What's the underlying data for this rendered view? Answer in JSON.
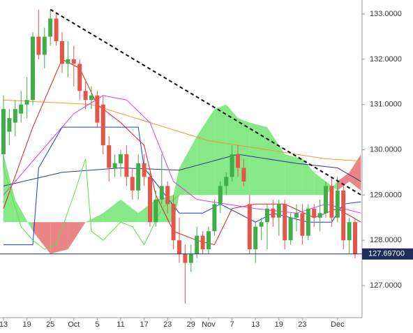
{
  "chart_data": {
    "type": "candlestick",
    "categories": [
      "13",
      null,
      null,
      null,
      "19",
      null,
      null,
      null,
      "25",
      null,
      null,
      null,
      "Oct",
      null,
      null,
      null,
      "5",
      null,
      null,
      null,
      "11",
      null,
      null,
      null,
      "17",
      null,
      null,
      null,
      "23",
      null,
      null,
      null,
      "29",
      null,
      null,
      "Nov",
      null,
      null,
      null,
      "7",
      null,
      null,
      null,
      "13",
      null,
      null,
      null,
      "19",
      null,
      null,
      null,
      "23",
      null,
      null,
      null,
      null,
      null,
      "Dec",
      null,
      null,
      null
    ],
    "open": [
      129.9,
      130.4,
      130.6,
      130.8,
      131.0,
      131.1,
      132.5,
      132.1,
      132.5,
      132.9,
      132.4,
      131.9,
      132.0,
      131.9,
      131.3,
      131.1,
      131.2,
      131.0,
      130.1,
      129.6,
      129.7,
      129.9,
      129.4,
      129.1,
      129.7,
      129.4,
      128.4,
      128.9,
      129.2,
      128.8,
      128.0,
      127.7,
      127.5,
      127.7,
      128.1,
      127.8,
      128.2,
      128.8,
      129.2,
      129.4,
      129.9,
      129.6,
      128.8,
      127.8,
      128.3,
      128.4,
      128.7,
      128.5,
      128.8,
      128.0,
      128.5,
      128.6,
      128.1,
      128.7,
      128.5,
      128.6,
      129.2,
      128.5,
      129.1,
      128.0,
      128.4
    ],
    "high": [
      131.2,
      130.9,
      131.1,
      131.3,
      131.6,
      132.6,
      133.1,
      132.7,
      133.1,
      133.0,
      132.6,
      132.4,
      132.3,
      132.0,
      131.5,
      131.4,
      131.3,
      131.2,
      130.3,
      129.9,
      130.0,
      130.1,
      129.6,
      129.9,
      129.9,
      129.5,
      129.1,
      129.9,
      129.3,
      129.0,
      128.5,
      127.9,
      127.9,
      128.3,
      128.2,
      128.3,
      128.9,
      129.3,
      129.5,
      130.1,
      130.1,
      129.8,
      129.0,
      128.4,
      128.5,
      128.8,
      128.9,
      128.9,
      128.9,
      128.6,
      128.8,
      128.8,
      128.8,
      128.8,
      128.9,
      129.3,
      129.4,
      129.4,
      129.2,
      128.5,
      128.5
    ],
    "low": [
      129.6,
      130.1,
      130.3,
      130.6,
      130.7,
      131.0,
      132.0,
      131.8,
      132.3,
      132.3,
      131.7,
      131.6,
      131.4,
      131.1,
      130.9,
      130.9,
      130.5,
      129.9,
      129.3,
      129.4,
      129.4,
      129.2,
      128.9,
      128.9,
      129.2,
      128.3,
      128.3,
      128.8,
      128.6,
      127.8,
      127.5,
      126.6,
      127.3,
      127.6,
      127.7,
      127.7,
      128.1,
      128.6,
      129.0,
      129.3,
      129.4,
      129.2,
      127.7,
      127.5,
      128.0,
      127.8,
      128.3,
      128.1,
      127.8,
      127.9,
      128.2,
      127.9,
      128.0,
      128.3,
      128.2,
      128.5,
      128.3,
      128.4,
      127.8,
      127.7,
      127.6
    ],
    "close": [
      130.9,
      130.7,
      130.9,
      131.0,
      131.1,
      132.5,
      132.1,
      132.5,
      132.9,
      132.4,
      131.9,
      132.0,
      131.9,
      131.3,
      131.1,
      131.2,
      130.6,
      130.1,
      129.6,
      129.7,
      129.9,
      129.4,
      129.1,
      129.7,
      129.4,
      128.4,
      128.9,
      129.2,
      128.8,
      128.0,
      127.7,
      127.5,
      127.7,
      128.1,
      127.8,
      128.2,
      128.8,
      129.2,
      129.4,
      129.9,
      129.6,
      129.3,
      127.8,
      128.3,
      128.4,
      128.7,
      128.5,
      128.8,
      128.0,
      128.5,
      128.6,
      128.1,
      128.7,
      128.5,
      128.6,
      129.2,
      128.5,
      129.1,
      128.0,
      128.4,
      127.7
    ],
    "up_color": "#3fae49",
    "down_color": "#e5554a",
    "ylim": [
      126.29,
      133.31
    ],
    "yticks": [
      {
        "value": 127,
        "label": "127.0000"
      },
      {
        "value": 128,
        "label": "128.0000"
      },
      {
        "value": 129,
        "label": "129.0000"
      },
      {
        "value": 130,
        "label": "130.0000"
      },
      {
        "value": 131,
        "label": "131.0000"
      },
      {
        "value": 132,
        "label": "132.0000"
      },
      {
        "value": 133,
        "label": "133.0000"
      }
    ],
    "cloud": {
      "x": [
        0,
        2,
        5,
        8,
        11,
        14,
        17,
        20,
        23,
        26,
        29,
        30,
        33,
        36,
        38,
        40,
        42,
        45,
        48,
        51,
        53,
        55,
        57,
        59,
        61
      ],
      "span_a": [
        129.9,
        128.9,
        128.2,
        127.7,
        127.8,
        128.4,
        128.6,
        128.9,
        128.6,
        128.9,
        129.0,
        129.6,
        130.3,
        130.9,
        131.0,
        130.7,
        130.6,
        130.5,
        129.9,
        129.8,
        129.5,
        129.3,
        129.1,
        129.3,
        129.1
      ],
      "span_b": [
        128.4,
        128.4,
        128.4,
        128.4,
        128.4,
        128.4,
        128.4,
        128.4,
        128.4,
        128.4,
        128.4,
        129.0,
        129.0,
        129.0,
        129.0,
        129.0,
        129.0,
        129.0,
        129.0,
        129.0,
        129.0,
        129.0,
        129.3,
        129.5,
        129.9
      ],
      "up_color": "#5ee05e",
      "down_color": "#e25c5c"
    },
    "overlays": [
      {
        "color": "#f29a2e",
        "x": [
          0,
          15,
          25,
          35,
          45,
          55,
          61
        ],
        "values": [
          131.1,
          131.0,
          130.6,
          130.2,
          130.0,
          129.8,
          129.75
        ]
      },
      {
        "color": "#2b3a8c",
        "x": [
          0,
          10,
          20,
          30,
          40,
          50,
          57,
          61
        ],
        "values": [
          129.2,
          129.5,
          129.6,
          129.55,
          129.9,
          129.7,
          129.6,
          129.3
        ]
      },
      {
        "color": "#e01e1e",
        "x": [
          0,
          5,
          10,
          13,
          16,
          20,
          24,
          26,
          29,
          33,
          36,
          39,
          43,
          48,
          53,
          57,
          61
        ],
        "values": [
          128.7,
          130.5,
          132.0,
          131.8,
          131.0,
          130.6,
          130.1,
          129.0,
          128.2,
          128.0,
          127.9,
          128.7,
          128.8,
          128.8,
          128.5,
          128.7,
          128.4
        ]
      },
      {
        "color": "#dd3ee0",
        "x": [
          0,
          6,
          12,
          17,
          21,
          25,
          29,
          33,
          38,
          43,
          50,
          55,
          61
        ],
        "values": [
          129.0,
          129.9,
          130.8,
          131.2,
          131.1,
          130.6,
          129.3,
          128.9,
          128.8,
          128.7,
          128.6,
          128.8,
          128.6
        ]
      },
      {
        "color": "#1a3ce0",
        "x": [
          0,
          5,
          6,
          10,
          23,
          24,
          30,
          34,
          37,
          43,
          46,
          52,
          56,
          58,
          61
        ],
        "values": [
          127.9,
          127.9,
          129.6,
          130.5,
          130.5,
          129.6,
          128.6,
          128.6,
          128.8,
          128.4,
          128.6,
          128.4,
          128.4,
          128.8,
          128.85
        ]
      },
      {
        "color": "#66dd44",
        "x": [
          0,
          3,
          5,
          7,
          9,
          12,
          14,
          15,
          17,
          20,
          22,
          24,
          27,
          30
        ],
        "values": [
          129.6,
          128.3,
          128.0,
          127.8,
          127.9,
          129.0,
          129.8,
          128.2,
          128.0,
          128.4,
          128.3,
          127.9,
          128.7,
          129.0
        ]
      }
    ],
    "trendline": {
      "color": "#111111",
      "x": [
        8,
        61.3
      ],
      "values": [
        133.1,
        128.98
      ]
    },
    "last_price": {
      "value": 127.697,
      "label": "127.69700",
      "color": "#1f2d5a"
    }
  }
}
